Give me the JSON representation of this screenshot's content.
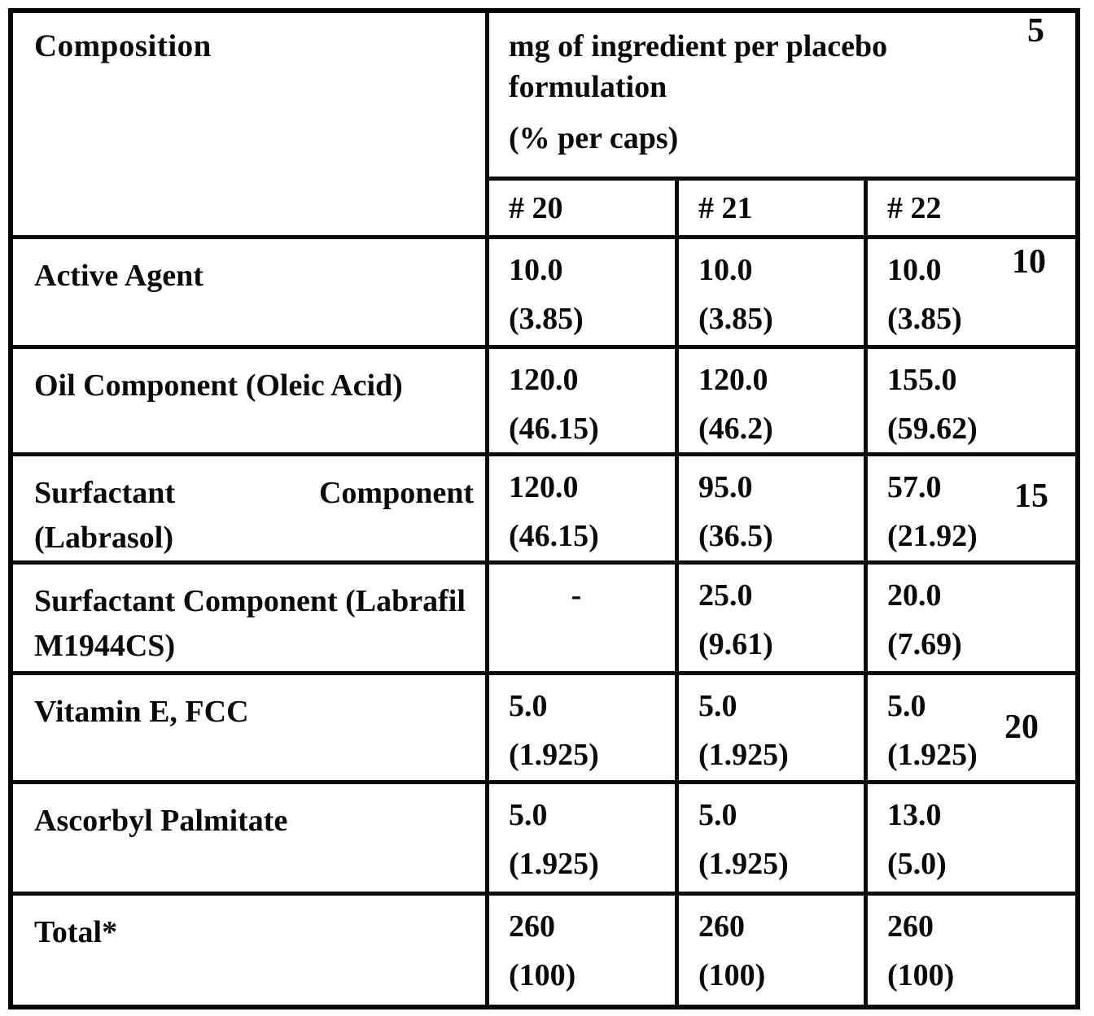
{
  "table": {
    "header": {
      "composition": "Composition",
      "value_header_line1": "mg of ingredient per placebo formulation",
      "value_header_line2": "(% per caps)",
      "columns": [
        "# 20",
        "# 21",
        "# 22"
      ]
    },
    "rows": [
      {
        "label": "Active Agent",
        "cells": [
          {
            "amount": "10.0",
            "percent": "(3.85)"
          },
          {
            "amount": "10.0",
            "percent": "(3.85)"
          },
          {
            "amount": "10.0",
            "percent": "(3.85)"
          }
        ]
      },
      {
        "label": "Oil Component (Oleic Acid)",
        "cells": [
          {
            "amount": "120.0",
            "percent": "(46.15)"
          },
          {
            "amount": "120.0",
            "percent": "(46.2)"
          },
          {
            "amount": "155.0",
            "percent": "(59.62)"
          }
        ]
      },
      {
        "label_line1_words": [
          "Surfactant",
          "Component"
        ],
        "label_line2": "(Labrasol)",
        "cells": [
          {
            "amount": "120.0",
            "percent": "(46.15)"
          },
          {
            "amount": "95.0",
            "percent": "(36.5)"
          },
          {
            "amount": "57.0",
            "percent": "(21.92)"
          }
        ]
      },
      {
        "label": "Surfactant Component (Labrafil M1944CS)",
        "cells": [
          {
            "amount": "-",
            "percent": ""
          },
          {
            "amount": "25.0",
            "percent": "(9.61)"
          },
          {
            "amount": "20.0",
            "percent": "(7.69)"
          }
        ]
      },
      {
        "label": "Vitamin E, FCC",
        "cells": [
          {
            "amount": "5.0",
            "percent": "(1.925)"
          },
          {
            "amount": "5.0",
            "percent": "(1.925)"
          },
          {
            "amount": "5.0",
            "percent": "(1.925)"
          }
        ]
      },
      {
        "label": "Ascorbyl Palmitate",
        "cells": [
          {
            "amount": "5.0",
            "percent": "(1.925)"
          },
          {
            "amount": "5.0",
            "percent": "(1.925)"
          },
          {
            "amount": "13.0",
            "percent": "(5.0)"
          }
        ]
      },
      {
        "label": "Total*",
        "cells": [
          {
            "amount": "260",
            "percent": "(100)"
          },
          {
            "amount": "260",
            "percent": "(100)"
          },
          {
            "amount": "260",
            "percent": "(100)"
          }
        ]
      }
    ]
  },
  "margin_line_numbers": [
    "5",
    "10",
    "15",
    "20"
  ]
}
